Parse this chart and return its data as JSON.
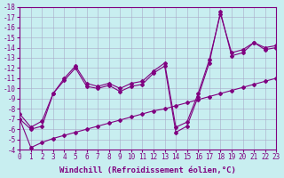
{
  "xlabel": "Windchill (Refroidissement éolien,°C)",
  "background_color": "#c8eef0",
  "line_color": "#800080",
  "grid_color": "#a8a8c8",
  "xlim": [
    0,
    23
  ],
  "ylim": [
    -4,
    -18
  ],
  "yticks": [
    -4,
    -5,
    -6,
    -7,
    -8,
    -9,
    -10,
    -11,
    -12,
    -13,
    -14,
    -15,
    -16,
    -17,
    -18
  ],
  "xticks": [
    0,
    1,
    2,
    3,
    4,
    5,
    6,
    7,
    8,
    9,
    10,
    11,
    12,
    13,
    14,
    15,
    16,
    17,
    18,
    19,
    20,
    21,
    22,
    23
  ],
  "line1_x": [
    0,
    1,
    2,
    3,
    4,
    5,
    6,
    7,
    8,
    9,
    10,
    11,
    12,
    13,
    14,
    15,
    16,
    17,
    18,
    19,
    20,
    21,
    22,
    23
  ],
  "line1_y": [
    -7.0,
    -4.2,
    -4.7,
    -5.1,
    -5.4,
    -5.7,
    -6.0,
    -6.3,
    -6.6,
    -6.9,
    -7.2,
    -7.5,
    -7.8,
    -8.0,
    -8.3,
    -8.6,
    -8.9,
    -9.2,
    -9.5,
    -9.8,
    -10.1,
    -10.4,
    -10.7,
    -11.0
  ],
  "line2_x": [
    0,
    1,
    2,
    3,
    4,
    5,
    6,
    7,
    8,
    9,
    10,
    11,
    12,
    13,
    14,
    15,
    16,
    17,
    18,
    19,
    20,
    21,
    22,
    23
  ],
  "line2_y": [
    -7.0,
    -6.0,
    -6.3,
    -9.5,
    -10.8,
    -12.0,
    -10.2,
    -10.0,
    -10.3,
    -9.7,
    -10.2,
    -10.4,
    -11.5,
    -12.2,
    -5.7,
    -6.3,
    -9.2,
    -12.5,
    -17.5,
    -13.2,
    -13.5,
    -14.5,
    -13.8,
    -14.0
  ],
  "line3_x": [
    0,
    1,
    2,
    3,
    4,
    5,
    6,
    7,
    8,
    9,
    10,
    11,
    12,
    13,
    14,
    15,
    16,
    17,
    18,
    19,
    20,
    21,
    22,
    23
  ],
  "line3_y": [
    -7.5,
    -6.2,
    -6.8,
    -9.5,
    -11.0,
    -12.2,
    -10.5,
    -10.2,
    -10.5,
    -10.0,
    -10.5,
    -10.7,
    -11.7,
    -12.5,
    -6.2,
    -6.7,
    -9.5,
    -12.8,
    -17.3,
    -13.5,
    -13.8,
    -14.5,
    -14.0,
    -14.2
  ],
  "marker": "D",
  "markersize": 2.0,
  "linewidth": 0.8,
  "xlabel_fontsize": 6.5,
  "tick_fontsize": 5.5
}
